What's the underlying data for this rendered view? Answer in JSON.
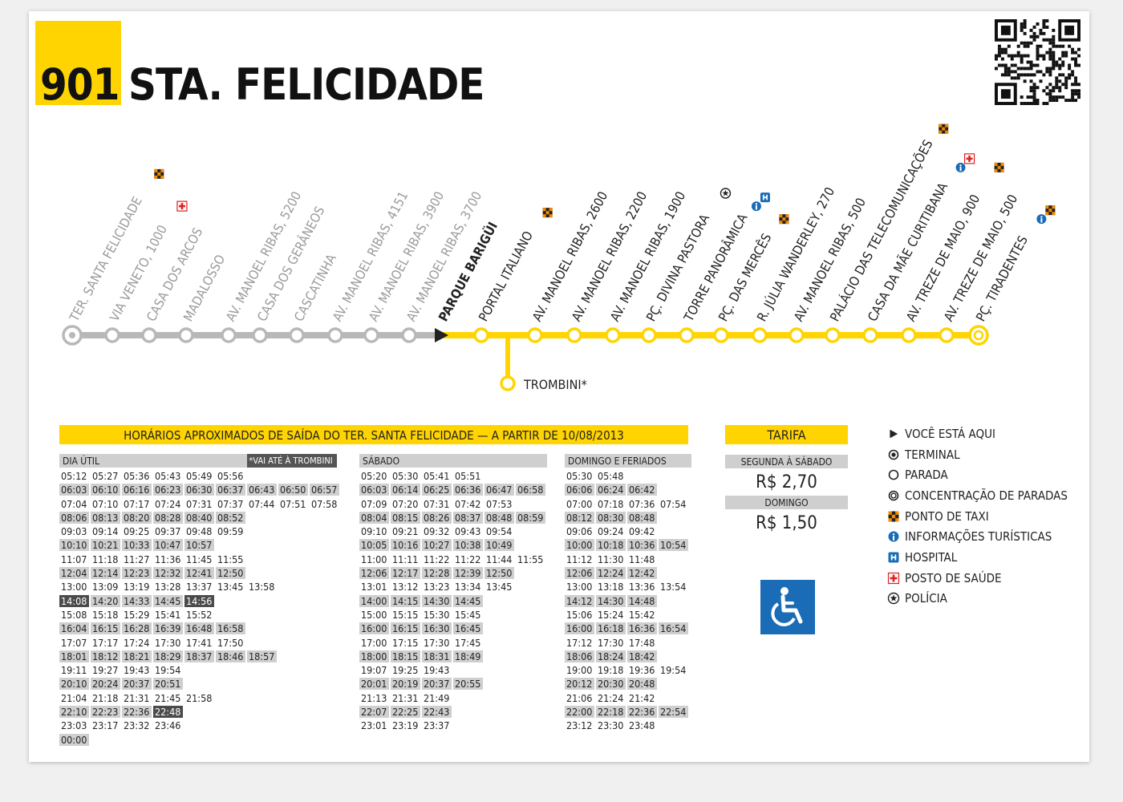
{
  "header": {
    "route_number": "901",
    "route_name": "STA. FELICIDADE"
  },
  "stops": [
    {
      "name": "TER. SANTA FELICIDADE",
      "type": "terminal",
      "state": "past",
      "icons": [
        "taxi"
      ]
    },
    {
      "name": "VIA VENETO, 1000",
      "type": "stop",
      "state": "past",
      "icons": [
        "health"
      ]
    },
    {
      "name": "CASA DOS ARCOS",
      "type": "stop",
      "state": "past",
      "icons": []
    },
    {
      "name": "MADALOSSO",
      "type": "stop",
      "state": "past",
      "icons": []
    },
    {
      "name": "AV. MANOEL RIBAS, 5200",
      "type": "stop",
      "state": "past",
      "icons": []
    },
    {
      "name": "CASA DOS GERÂNEOS",
      "type": "stop",
      "state": "past",
      "icons": []
    },
    {
      "name": "CASCATINHA",
      "type": "stop",
      "state": "past",
      "icons": []
    },
    {
      "name": "AV. MANOEL RIBAS, 4151",
      "type": "stop",
      "state": "past",
      "icons": []
    },
    {
      "name": "AV. MANOEL RIBAS, 3900",
      "type": "stop",
      "state": "past",
      "icons": []
    },
    {
      "name": "AV. MANOEL RIBAS, 3700",
      "type": "stop",
      "state": "past",
      "icons": []
    },
    {
      "name": "PARQUE BARIGÜI",
      "type": "current",
      "state": "current",
      "icons": []
    },
    {
      "name": "PORTAL ITALIANO",
      "type": "stop",
      "state": "next",
      "icons": [
        "taxi"
      ]
    },
    {
      "name": "AV. MANOEL RIBAS, 2600",
      "type": "stop",
      "state": "next",
      "icons": []
    },
    {
      "name": "AV. MANOEL RIBAS, 2200",
      "type": "stop",
      "state": "next",
      "icons": []
    },
    {
      "name": "AV. MANOEL RIBAS, 1900",
      "type": "stop",
      "state": "next",
      "icons": []
    },
    {
      "name": "PÇ. DIVINA PASTORA",
      "type": "stop",
      "state": "next",
      "icons": [
        "police"
      ]
    },
    {
      "name": "TORRE PANORÂMICA",
      "type": "stop",
      "state": "next",
      "icons": [
        "info",
        "hospital"
      ]
    },
    {
      "name": "PÇ. DAS MERCÊS",
      "type": "stop",
      "state": "next",
      "icons": [
        "taxi"
      ]
    },
    {
      "name": "R. JÚLIA WANDERLEY, 270",
      "type": "stop",
      "state": "next",
      "icons": []
    },
    {
      "name": "AV. MANOEL RIBAS, 500",
      "type": "stop",
      "state": "next",
      "icons": []
    },
    {
      "name": "PALÁCIO DAS TELECOMUNICAÇÕES",
      "type": "stop",
      "state": "next",
      "icons": [
        "taxi"
      ]
    },
    {
      "name": "CASA DA MÃE CURITIBANA",
      "type": "stop",
      "state": "next",
      "icons": [
        "info",
        "health"
      ]
    },
    {
      "name": "AV. TREZE DE MAIO, 900",
      "type": "stop",
      "state": "next",
      "icons": [
        "taxi"
      ]
    },
    {
      "name": "AV. TREZE DE MAIO, 500",
      "type": "stop",
      "state": "next",
      "icons": []
    },
    {
      "name": "PÇ. TIRADENTES",
      "type": "concentration",
      "state": "next",
      "icons": [
        "info",
        "taxi"
      ]
    }
  ],
  "branch": {
    "name": "TROMBINI*"
  },
  "schedule": {
    "title": "HORÁRIOS APROXIMADOS DE SAÍDA DO TER. SANTA FELICIDADE — A PARTIR DE 10/08/2013",
    "note": "*VAI ATÉ À TROMBINI",
    "sections": [
      {
        "name": "DIA ÚTIL",
        "rows": [
          [
            "05:12",
            "05:27",
            "05:36",
            "05:43",
            "05:49",
            "05:56"
          ],
          [
            "06:03",
            "06:10",
            "06:16",
            "06:23",
            "06:30",
            "06:37",
            "06:43",
            "06:50",
            "06:57"
          ],
          [
            "07:04",
            "07:10",
            "07:17",
            "07:24",
            "07:31",
            "07:37",
            "07:44",
            "07:51",
            "07:58"
          ],
          [
            "08:06",
            "08:13",
            "08:20",
            "08:28",
            "08:40",
            "08:52"
          ],
          [
            "09:03",
            "09:14",
            "09:25",
            "09:37",
            "09:48",
            "09:59"
          ],
          [
            "10:10",
            "10:21",
            "10:33",
            "10:47",
            "10:57"
          ],
          [
            "11:07",
            "11:18",
            "11:27",
            "11:36",
            "11:45",
            "11:55"
          ],
          [
            "12:04",
            "12:14",
            "12:23",
            "12:32",
            "12:41",
            "12:50"
          ],
          [
            "13:00",
            "13:09",
            "13:19",
            "13:28",
            "13:37",
            "13:45",
            "13:58"
          ],
          [
            "14:08",
            "14:20",
            "14:33",
            "14:45",
            "14:56"
          ],
          [
            "15:08",
            "15:18",
            "15:29",
            "15:41",
            "15:52"
          ],
          [
            "16:04",
            "16:15",
            "16:28",
            "16:39",
            "16:48",
            "16:58"
          ],
          [
            "17:07",
            "17:17",
            "17:24",
            "17:30",
            "17:41",
            "17:50"
          ],
          [
            "18:01",
            "18:12",
            "18:21",
            "18:29",
            "18:37",
            "18:46",
            "18:57"
          ],
          [
            "19:11",
            "19:27",
            "19:43",
            "19:54"
          ],
          [
            "20:10",
            "20:24",
            "20:37",
            "20:51"
          ],
          [
            "21:04",
            "21:18",
            "21:31",
            "21:45",
            "21:58"
          ],
          [
            "22:10",
            "22:23",
            "22:36",
            "22:48"
          ],
          [
            "23:03",
            "23:17",
            "23:32",
            "23:46"
          ],
          [
            "00:00"
          ]
        ]
      },
      {
        "name": "SÁBADO",
        "rows": [
          [
            "05:20",
            "05:30",
            "05:41",
            "05:51"
          ],
          [
            "06:03",
            "06:14",
            "06:25",
            "06:36",
            "06:47",
            "06:58"
          ],
          [
            "07:09",
            "07:20",
            "07:31",
            "07:42",
            "07:53"
          ],
          [
            "08:04",
            "08:15",
            "08:26",
            "08:37",
            "08:48",
            "08:59"
          ],
          [
            "09:10",
            "09:21",
            "09:32",
            "09:43",
            "09:54"
          ],
          [
            "10:05",
            "10:16",
            "10:27",
            "10:38",
            "10:49"
          ],
          [
            "11:00",
            "11:11",
            "11:22",
            "11:22",
            "11:44",
            "11:55"
          ],
          [
            "12:06",
            "12:17",
            "12:28",
            "12:39",
            "12:50"
          ],
          [
            "13:01",
            "13:12",
            "13:23",
            "13:34",
            "13:45"
          ],
          [
            "14:00",
            "14:15",
            "14:30",
            "14:45"
          ],
          [
            "15:00",
            "15:15",
            "15:30",
            "15:45"
          ],
          [
            "16:00",
            "16:15",
            "16:30",
            "16:45"
          ],
          [
            "17:00",
            "17:15",
            "17:30",
            "17:45"
          ],
          [
            "18:00",
            "18:15",
            "18:31",
            "18:49"
          ],
          [
            "19:07",
            "19:25",
            "19:43"
          ],
          [
            "20:01",
            "20:19",
            "20:37",
            "20:55"
          ],
          [
            "21:13",
            "21:31",
            "21:49"
          ],
          [
            "22:07",
            "22:25",
            "22:43"
          ],
          [
            "23:01",
            "23:19",
            "23:37"
          ]
        ]
      },
      {
        "name": "DOMINGO E FERIADOS",
        "rows": [
          [
            "05:30",
            "05:48"
          ],
          [
            "06:06",
            "06:24",
            "06:42"
          ],
          [
            "07:00",
            "07:18",
            "07:36",
            "07:54"
          ],
          [
            "08:12",
            "08:30",
            "08:48"
          ],
          [
            "09:06",
            "09:24",
            "09:42"
          ],
          [
            "10:00",
            "10:18",
            "10:36",
            "10:54"
          ],
          [
            "11:12",
            "11:30",
            "11:48"
          ],
          [
            "12:06",
            "12:24",
            "12:42"
          ],
          [
            "13:00",
            "13:18",
            "13:36",
            "13:54"
          ],
          [
            "14:12",
            "14:30",
            "14:48"
          ],
          [
            "15:06",
            "15:24",
            "15:42"
          ],
          [
            "16:00",
            "16:18",
            "16:36",
            "16:54"
          ],
          [
            "17:12",
            "17:30",
            "17:48"
          ],
          [
            "18:06",
            "18:24",
            "18:42"
          ],
          [
            "19:00",
            "19:18",
            "19:36",
            "19:54"
          ],
          [
            "20:12",
            "20:30",
            "20:48"
          ],
          [
            "21:06",
            "21:24",
            "21:42"
          ],
          [
            "22:00",
            "22:18",
            "22:36",
            "22:54"
          ],
          [
            "23:12",
            "23:30",
            "23:48"
          ]
        ]
      }
    ],
    "trombini_trips": [
      "14:08",
      "14:56",
      "22:48"
    ]
  },
  "fare": {
    "title": "TARIFA",
    "weekday_label": "SEGUNDA À SÁBADO",
    "weekday_value": "R$ 2,70",
    "sunday_label": "DOMINGO",
    "sunday_value": "R$ 1,50"
  },
  "legend": {
    "items": [
      {
        "icon": "you-are-here",
        "label": "VOCÊ ESTÁ AQUI"
      },
      {
        "icon": "terminal",
        "label": "TERMINAL"
      },
      {
        "icon": "stop",
        "label": "PARADA"
      },
      {
        "icon": "concentration",
        "label": "CONCENTRAÇÃO DE PARADAS"
      },
      {
        "icon": "taxi",
        "label": "PONTO DE TAXI"
      },
      {
        "icon": "info",
        "label": "INFORMAÇÕES TURÍSTICAS"
      },
      {
        "icon": "hospital",
        "label": "HOSPITAL"
      },
      {
        "icon": "health",
        "label": "POSTO DE SAÚDE"
      },
      {
        "icon": "police",
        "label": "POLÍCIA"
      }
    ]
  },
  "accessibility_icon": "wheelchair-icon",
  "colors": {
    "accent": "#ffd400",
    "line_past": "#b8b8b8",
    "info": "#1a6cb7",
    "health": "#e02020",
    "taxi": "#f08a00"
  }
}
